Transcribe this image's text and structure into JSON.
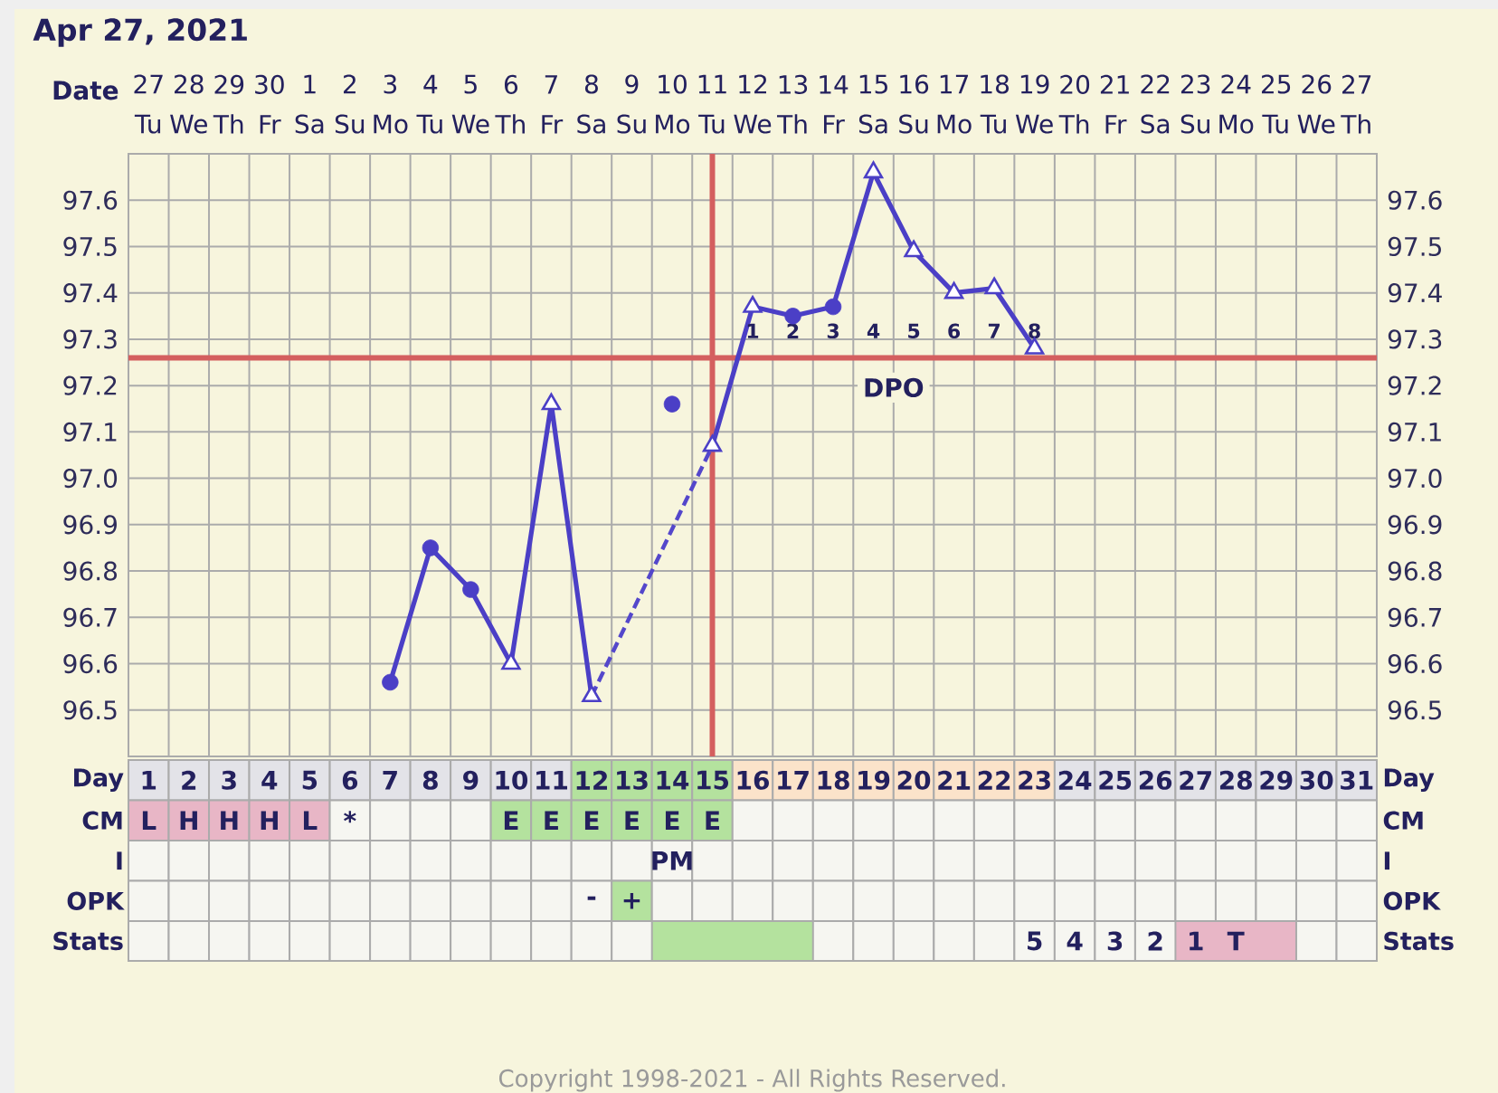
{
  "chart_data": [
    {
      "type": "line",
      "title": "Apr 27, 2021",
      "xlabel": "Date",
      "categories": [
        "27 Tu",
        "28 We",
        "29 Th",
        "30 Fr",
        "1 Sa",
        "2 Su",
        "3 Mo",
        "4 Tu",
        "5 We",
        "6 Th",
        "7 Fr",
        "8 Sa",
        "9 Su",
        "10 Mo",
        "11 Tu",
        "12 We",
        "13 Th",
        "14 Fr",
        "15 Sa",
        "16 Su",
        "17 Mo",
        "18 Tu",
        "19 We",
        "20 Th",
        "21 Fr",
        "22 Sa",
        "23 Su",
        "24 Mo",
        "25 Tu",
        "26 We",
        "27 Th"
      ],
      "series": [
        {
          "type": "line",
          "color": "#4b3fc6",
          "marker": "none",
          "line_style": "solid",
          "values": [
            null,
            null,
            null,
            null,
            null,
            null,
            96.56,
            96.85,
            96.76,
            96.6,
            97.16,
            96.53,
            null,
            null,
            97.07,
            97.37,
            97.35,
            97.37,
            97.66,
            97.49,
            97.4,
            97.41,
            97.28,
            null,
            null,
            null,
            null,
            null,
            null,
            null,
            null
          ]
        },
        {
          "type": "line",
          "color": "#5447cb",
          "marker": "none",
          "line_style": "dashed",
          "x": [
            "8 Sa",
            "11 Tu"
          ],
          "values": [
            96.53,
            97.07
          ]
        },
        {
          "type": "scatter",
          "color": "#4b3fc6",
          "marker": "circle",
          "values": [
            null,
            null,
            null,
            null,
            null,
            null,
            96.56,
            96.85,
            96.76,
            null,
            null,
            null,
            null,
            97.16,
            null,
            null,
            97.35,
            97.37,
            null,
            null,
            null,
            null,
            null,
            null,
            null,
            null,
            null,
            null,
            null,
            null,
            null
          ]
        },
        {
          "type": "scatter",
          "color": "#4b3fc6",
          "marker": "triangle",
          "values": [
            null,
            null,
            null,
            null,
            null,
            null,
            null,
            null,
            null,
            96.6,
            97.16,
            96.53,
            null,
            null,
            97.07,
            97.37,
            null,
            null,
            97.66,
            97.49,
            97.4,
            97.41,
            97.28,
            null,
            null,
            null,
            null,
            null,
            null,
            null,
            null
          ]
        }
      ],
      "ylim": [
        96.4,
        97.7
      ],
      "yticks": [
        96.5,
        96.6,
        96.7,
        96.8,
        96.9,
        {
          "value": 97,
          "label": "97.0"
        },
        97.1,
        97.2,
        97.3,
        97.4,
        97.5,
        97.6
      ],
      "y2lim": [
        96.4,
        97.7
      ],
      "y2ticks": [
        96.5,
        96.6,
        96.7,
        96.8,
        96.9,
        {
          "value": 97,
          "label": "97.0"
        },
        97.1,
        97.2,
        97.3,
        97.4,
        97.5,
        97.6
      ],
      "grid": true,
      "ref_lines": [
        {
          "axis": "y",
          "value": 97.26,
          "color": "#d45f5f"
        },
        {
          "axis": "x",
          "value": "11 Tu",
          "color": "#d45f5f"
        }
      ],
      "annotations": [
        "1",
        "2",
        "3",
        "4",
        "5",
        "6",
        "7",
        "8",
        "DPO"
      ]
    },
    {
      "type": "heatmap",
      "categories": [
        null,
        null,
        null,
        null,
        null,
        null,
        null,
        null,
        null,
        null,
        null,
        null,
        null,
        null,
        null,
        null,
        null,
        null,
        null,
        null,
        null,
        null,
        null,
        null,
        null,
        null,
        null,
        null,
        null,
        null,
        null
      ],
      "y_categories": [
        "Day",
        "CM",
        "I",
        "OPK"
      ],
      "y2_categories": [
        "Day",
        "CM",
        "I",
        "OPK"
      ],
      "cells": [
        [
          null,
          null,
          null,
          null,
          null,
          null,
          null,
          null,
          null,
          null,
          null,
          null,
          null,
          null,
          null,
          null,
          null,
          null,
          null,
          null,
          null,
          null,
          null,
          null,
          null,
          null,
          null,
          null,
          null,
          null,
          null
        ],
        [
          null,
          null,
          null,
          null,
          null,
          null,
          null,
          null,
          null,
          null,
          null,
          null,
          null,
          null,
          null,
          null,
          null,
          null,
          null,
          null,
          null,
          null,
          null,
          null,
          null,
          null,
          null,
          null,
          null,
          null,
          null
        ],
        [
          null,
          null,
          null,
          null,
          null,
          null,
          null,
          null,
          null,
          null,
          null,
          null,
          null,
          null,
          null,
          null,
          null,
          null,
          null,
          null,
          null,
          null,
          null,
          null,
          null,
          null,
          null,
          null,
          null,
          null,
          null
        ],
        [
          null,
          null,
          null,
          null,
          null,
          null,
          null,
          null,
          null,
          null,
          null,
          null,
          null,
          null,
          null,
          null,
          null,
          null,
          null,
          null,
          null,
          null,
          null,
          null,
          null,
          null,
          null,
          null,
          null,
          null,
          null
        ]
      ],
      "cell_labels": [
        [
          "1",
          "2",
          "3",
          "4",
          "5",
          "6",
          "7",
          "8",
          "9",
          "10",
          "11",
          "12",
          "13",
          "14",
          "15",
          "16",
          "17",
          "18",
          "19",
          "20",
          "21",
          "22",
          "23",
          "24",
          "25",
          "26",
          "27",
          "28",
          "29",
          "30",
          "31"
        ],
        [
          "L",
          "H",
          "H",
          "H",
          "L",
          "*",
          null,
          null,
          null,
          "E",
          "E",
          "E",
          "E",
          "E",
          "E",
          null,
          null,
          null,
          null,
          null,
          null,
          null,
          null,
          null,
          null,
          null,
          null,
          null,
          null,
          null,
          null
        ],
        [
          null,
          null,
          null,
          null,
          null,
          null,
          null,
          null,
          null,
          null,
          null,
          null,
          null,
          "PM",
          null,
          null,
          null,
          null,
          null,
          null,
          null,
          null,
          null,
          null,
          null,
          null,
          null,
          null,
          null,
          null,
          null
        ],
        [
          null,
          null,
          null,
          null,
          null,
          null,
          null,
          null,
          null,
          null,
          null,
          "-",
          "+",
          null,
          null,
          null,
          null,
          null,
          null,
          null,
          null,
          null,
          null,
          null,
          null,
          null,
          null,
          null,
          null,
          null,
          null
        ]
      ],
      "colors": [
        [
          "#e3e3e8",
          "#e3e3e8",
          "#e3e3e8",
          "#e3e3e8",
          "#e3e3e8",
          "#e3e3e8",
          "#e3e3e8",
          "#e3e3e8",
          "#e3e3e8",
          "#e3e3e8",
          "#e3e3e8",
          "#b4e29e",
          "#b4e29e",
          "#b4e29e",
          "#b4e29e",
          "#fbe3ca",
          "#fbe3ca",
          "#fbe3ca",
          "#fbe3ca",
          "#fbe3ca",
          "#fbe3ca",
          "#fbe3ca",
          "#fbe3ca",
          "#e3e3e8",
          "#e3e3e8",
          "#e3e3e8",
          "#e3e3e8",
          "#e3e3e8",
          "#e3e3e8",
          "#e3e3e8",
          "#e3e3e8"
        ],
        [
          "#e8b6c6",
          "#e8b6c6",
          "#e8b6c6",
          "#e8b6c6",
          "#e8b6c6",
          "#f6f6f1",
          "#f6f6f1",
          "#f6f6f1",
          "#f6f6f1",
          "#b4e29e",
          "#b4e29e",
          "#b4e29e",
          "#b4e29e",
          "#b4e29e",
          "#b4e29e",
          "#f6f6f1",
          "#f6f6f1",
          "#f6f6f1",
          "#f6f6f1",
          "#f6f6f1",
          "#f6f6f1",
          "#f6f6f1",
          "#f6f6f1",
          "#f6f6f1",
          "#f6f6f1",
          "#f6f6f1",
          "#f6f6f1",
          "#f6f6f1",
          "#f6f6f1",
          "#f6f6f1",
          "#f6f6f1"
        ],
        [
          "#f6f6f1",
          "#f6f6f1",
          "#f6f6f1",
          "#f6f6f1",
          "#f6f6f1",
          "#f6f6f1",
          "#f6f6f1",
          "#f6f6f1",
          "#f6f6f1",
          "#f6f6f1",
          "#f6f6f1",
          "#f6f6f1",
          "#f6f6f1",
          "#f6f6f1",
          "#f6f6f1",
          "#f6f6f1",
          "#f6f6f1",
          "#f6f6f1",
          "#f6f6f1",
          "#f6f6f1",
          "#f6f6f1",
          "#f6f6f1",
          "#f6f6f1",
          "#f6f6f1",
          "#f6f6f1",
          "#f6f6f1",
          "#f6f6f1",
          "#f6f6f1",
          "#f6f6f1",
          "#f6f6f1",
          "#f6f6f1"
        ],
        [
          "#f6f6f1",
          "#f6f6f1",
          "#f6f6f1",
          "#f6f6f1",
          "#f6f6f1",
          "#f6f6f1",
          "#f6f6f1",
          "#f6f6f1",
          "#f6f6f1",
          "#f6f6f1",
          "#f6f6f1",
          "#f6f6f1",
          "#b4e29e",
          "#f6f6f1",
          "#f6f6f1",
          "#f6f6f1",
          "#f6f6f1",
          "#f6f6f1",
          "#f6f6f1",
          "#f6f6f1",
          "#f6f6f1",
          "#f6f6f1",
          "#f6f6f1",
          "#f6f6f1",
          "#f6f6f1",
          "#f6f6f1",
          "#f6f6f1",
          "#f6f6f1",
          "#f6f6f1",
          "#f6f6f1",
          "#f6f6f1"
        ]
      ],
      "annotations": [
        "Copyright 1998-2021 - All Rights Reserved."
      ]
    },
    {
      "type": "heatmap",
      "categories": [
        "1",
        "2",
        "3",
        "4",
        "5",
        "6",
        "7",
        "8",
        "9",
        "10",
        "11",
        "12",
        "13",
        "14",
        "15",
        "16",
        "17",
        "18",
        "19",
        "20",
        "21",
        "22",
        "23",
        "24",
        "25",
        "26",
        "27",
        "28",
        "29",
        "30",
        "31"
      ],
      "tick_labels": "y",
      "grid": "x",
      "y_categories": [
        "Stats"
      ],
      "y2_categories": [
        "Stats"
      ],
      "cells": [
        [
          null,
          null,
          null,
          null,
          null,
          null,
          null,
          null,
          null,
          null,
          null,
          null,
          null,
          null,
          null,
          null,
          null,
          null,
          null,
          null,
          null,
          null,
          null,
          null,
          null,
          null,
          null,
          null,
          null,
          null,
          null
        ]
      ],
      "cell_labels": [
        [
          null,
          null,
          null,
          null,
          null,
          null,
          null,
          null,
          null,
          null,
          null,
          null,
          null,
          null,
          null,
          null,
          null,
          null,
          null,
          null,
          null,
          null,
          "5",
          "4",
          "3",
          "2",
          "1",
          "T",
          null,
          null,
          null
        ]
      ],
      "colors": [
        [
          "#f6f6f1",
          "#f6f6f1",
          "#f6f6f1",
          "#f6f6f1",
          "#f6f6f1",
          "#f6f6f1",
          "#f6f6f1",
          "#f6f6f1",
          "#f6f6f1",
          "#f6f6f1",
          "#f6f6f1",
          "#f6f6f1",
          "#f6f6f1",
          null,
          null,
          null,
          null,
          "#f6f6f1",
          "#f6f6f1",
          "#f6f6f1",
          "#f6f6f1",
          "#f6f6f1",
          "#f6f6f1",
          "#f6f6f1",
          "#f6f6f1",
          "#f6f6f1",
          null,
          null,
          null,
          "#f6f6f1",
          "#f6f6f1"
        ]
      ],
      "bands": [
        {
          "axis": "x",
          "from": "14",
          "to": "17",
          "color": "#b4e29e"
        },
        {
          "axis": "x",
          "from": "27",
          "to": "29",
          "color": "#e8b6c6"
        }
      ]
    }
  ]
}
